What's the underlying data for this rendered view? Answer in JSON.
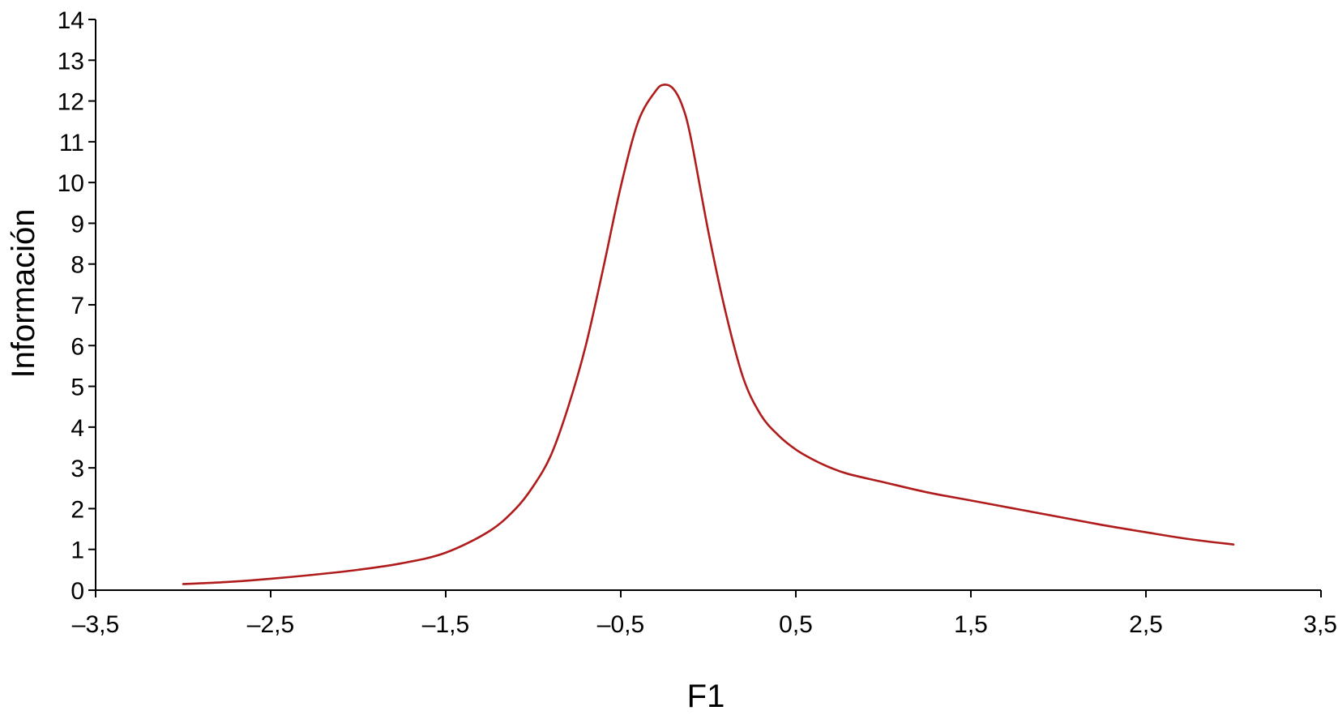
{
  "chart_data": {
    "type": "line",
    "title": "",
    "xlabel": "F1",
    "ylabel": "Información",
    "xlim": [
      -3.5,
      3.5
    ],
    "ylim": [
      0,
      14
    ],
    "x_ticks": [
      -3.5,
      -2.5,
      -1.5,
      -0.5,
      0.5,
      1.5,
      2.5,
      3.5
    ],
    "x_tick_labels": [
      "–3,5",
      "–2,5",
      "–1,5",
      "–0,5",
      "0,5",
      "1,5",
      "2,5",
      "3,5"
    ],
    "y_ticks": [
      0,
      1,
      2,
      3,
      4,
      5,
      6,
      7,
      8,
      9,
      10,
      11,
      12,
      13,
      14
    ],
    "y_tick_labels": [
      "0",
      "1",
      "2",
      "3",
      "4",
      "5",
      "6",
      "7",
      "8",
      "9",
      "10",
      "11",
      "12",
      "13",
      "14"
    ],
    "grid": false,
    "legend": "none",
    "line_color": "#b01c1c",
    "series": [
      {
        "x": [
          -3.0,
          -2.75,
          -2.5,
          -2.25,
          -2.0,
          -1.75,
          -1.5,
          -1.25,
          -1.1,
          -1.0,
          -0.9,
          -0.8,
          -0.7,
          -0.6,
          -0.5,
          -0.4,
          -0.3,
          -0.25,
          -0.2,
          -0.15,
          -0.1,
          0.0,
          0.1,
          0.2,
          0.3,
          0.4,
          0.5,
          0.6,
          0.7,
          0.8,
          1.0,
          1.25,
          1.5,
          1.75,
          2.0,
          2.25,
          2.5,
          2.75,
          3.0
        ],
        "y": [
          0.15,
          0.2,
          0.28,
          0.38,
          0.5,
          0.66,
          0.92,
          1.45,
          2.0,
          2.55,
          3.3,
          4.5,
          6.0,
          7.9,
          9.9,
          11.5,
          12.25,
          12.4,
          12.3,
          11.9,
          11.1,
          8.8,
          6.8,
          5.2,
          4.3,
          3.8,
          3.45,
          3.2,
          3.0,
          2.85,
          2.65,
          2.4,
          2.2,
          2.0,
          1.8,
          1.6,
          1.42,
          1.25,
          1.12
        ]
      }
    ]
  }
}
